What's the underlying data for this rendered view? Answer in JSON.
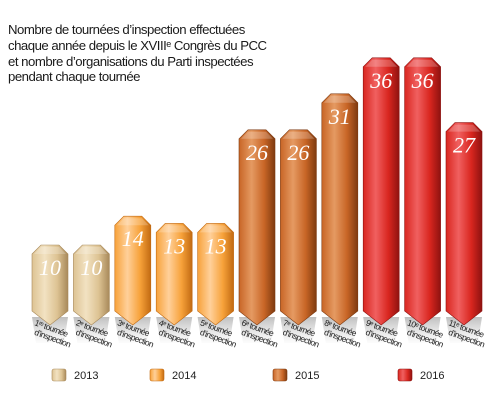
{
  "chart_data": {
    "type": "bar",
    "title_lines": [
      "Nombre de tournées d’inspection effectuées",
      "chaque année depuis le XVIIIᵉ Congrès du PCC",
      "et nombre d’organisations du Parti inspectées",
      "pendant chaque tournée"
    ],
    "categories": [
      [
        "1ʳᵉ tournée",
        "d’inspection"
      ],
      [
        "2ᵉ tournée",
        "d’inspection"
      ],
      [
        "3ᵉ tournée",
        "d’inspection"
      ],
      [
        "4ᵉ tournée",
        "d’inspection"
      ],
      [
        "5ᵉ tournée",
        "d’inspection"
      ],
      [
        "6ᵉ tournée",
        "d’inspection"
      ],
      [
        "7ᵉ tournée",
        "d’inspection"
      ],
      [
        "8ᵉ tournée",
        "d’inspection"
      ],
      [
        "9ᵉ tournée",
        "d’inspection"
      ],
      [
        "10ᵉ tournée",
        "d’inspection"
      ],
      [
        "11ᵉ tournée",
        "d’inspection"
      ]
    ],
    "values": [
      10,
      10,
      14,
      13,
      13,
      26,
      26,
      31,
      36,
      36,
      27
    ],
    "year_group": [
      0,
      0,
      1,
      1,
      1,
      2,
      2,
      2,
      3,
      3,
      3
    ],
    "legend": [
      {
        "label": "2013",
        "color_light": "#f2e2c2",
        "color": "#ddc393",
        "color_dark": "#a8895a"
      },
      {
        "label": "2014",
        "color_light": "#ffd09a",
        "color": "#f7a23a",
        "color_dark": "#c26a12"
      },
      {
        "label": "2015",
        "color_light": "#e59a62",
        "color": "#c86526",
        "color_dark": "#7e3a10"
      },
      {
        "label": "2016",
        "color_light": "#f06060",
        "color": "#d9261f",
        "color_dark": "#8e1210"
      }
    ],
    "ylim": [
      0,
      40
    ],
    "grid": false,
    "legend_position": "bottom"
  }
}
